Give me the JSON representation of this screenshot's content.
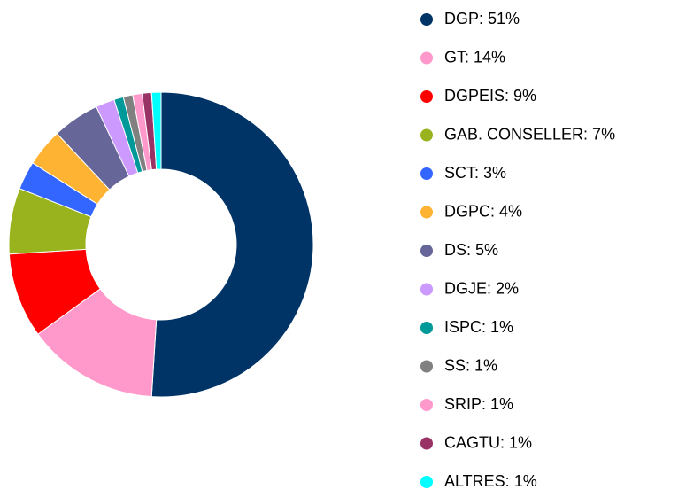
{
  "chart_data": {
    "type": "donut",
    "categories": [
      "DGP: 51%",
      "GT: 14%",
      "DGPEIS: 9%",
      "GAB. CONSELLER: 7%",
      "SCT: 3%",
      "DGPC: 4%",
      "DS: 5%",
      "DGJE: 2%",
      "ISPC: 1%",
      "SS: 1%",
      "SRIP: 1%",
      "CAGTU: 1%",
      "ALTRES: 1%"
    ],
    "values": [
      51,
      14,
      9,
      7,
      3,
      4,
      5,
      2,
      1,
      1,
      1,
      1,
      1
    ],
    "colors": [
      "#003366",
      "#ff99cc",
      "#ff0000",
      "#99b31f",
      "#3366ff",
      "#ffb333",
      "#666699",
      "#cc99ff",
      "#009999",
      "#808080",
      "#ff99cc",
      "#993366",
      "#00ffff"
    ],
    "legend": "right"
  }
}
